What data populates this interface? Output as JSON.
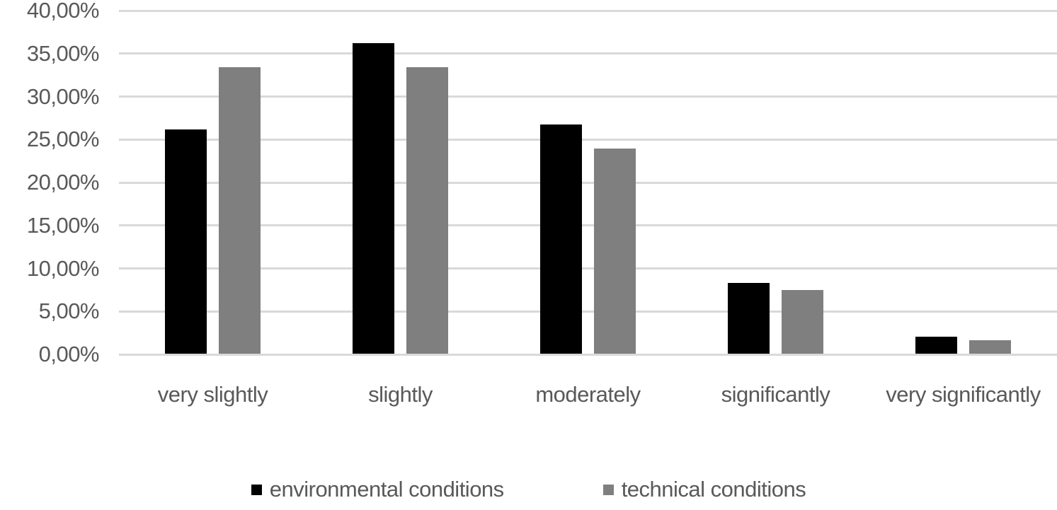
{
  "chart_data": {
    "type": "bar",
    "title": "",
    "categories": [
      "very slightly",
      "slightly",
      "moderately",
      "significantly",
      "very significantly"
    ],
    "series": [
      {
        "name": "environmental conditions",
        "color": "#000000",
        "values": [
          26.1,
          36.1,
          26.7,
          8.2,
          2.0
        ]
      },
      {
        "name": "technical conditions",
        "color": "#7f7f7f",
        "values": [
          33.3,
          33.3,
          23.9,
          7.4,
          1.6
        ]
      }
    ],
    "y_axis": {
      "min": 0,
      "max": 40,
      "step": 5,
      "unit": "%",
      "tick_labels": [
        "0,00%",
        "5,00%",
        "10,00%",
        "15,00%",
        "20,00%",
        "25,00%",
        "30,00%",
        "35,00%",
        "40,00%"
      ]
    },
    "xlabel": "",
    "ylabel": "",
    "grid": true,
    "legend_position": "bottom",
    "colors": {
      "gridline": "#d9d9d9",
      "axis_text": "#595959",
      "background": "#ffffff"
    }
  }
}
